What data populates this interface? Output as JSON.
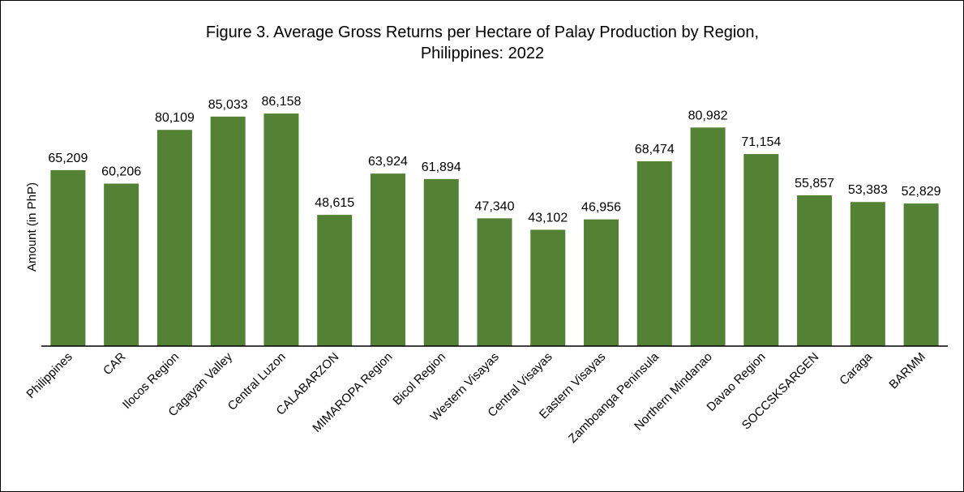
{
  "chart_data": {
    "type": "bar",
    "title": [
      "Figure 3. Average Gross Returns per Hectare of Palay Production by Region,",
      "Philippines: 2022"
    ],
    "y_label": "Amount (in PhP)",
    "categories": [
      "Philippines",
      "CAR",
      "Ilocos Region",
      "Cagayan Valley",
      "Central Luzon",
      "CALABARZON",
      "MIMAROPA Region",
      "Bicol Region",
      "Western Visayas",
      "Central Visayas",
      "Eastern Visayas",
      "Zamboanga Peninsula",
      "Northern Mindanao",
      "Davao Region",
      "SOCCSKSARGEN",
      "Caraga",
      "BARMM"
    ],
    "values": [
      65209,
      60206,
      80109,
      85033,
      86158,
      48615,
      63924,
      61894,
      47340,
      43102,
      46956,
      68474,
      80982,
      71154,
      55857,
      53383,
      52829
    ],
    "value_labels": [
      "65,209",
      "60,206",
      "80,109",
      "85,033",
      "86,158",
      "48,615",
      "63,924",
      "61,894",
      "47,340",
      "43,102",
      "46,956",
      "68,474",
      "80,982",
      "71,154",
      "55,857",
      "53,383",
      "52,829"
    ],
    "color": "#548235",
    "ylim": [
      0,
      100000
    ]
  }
}
